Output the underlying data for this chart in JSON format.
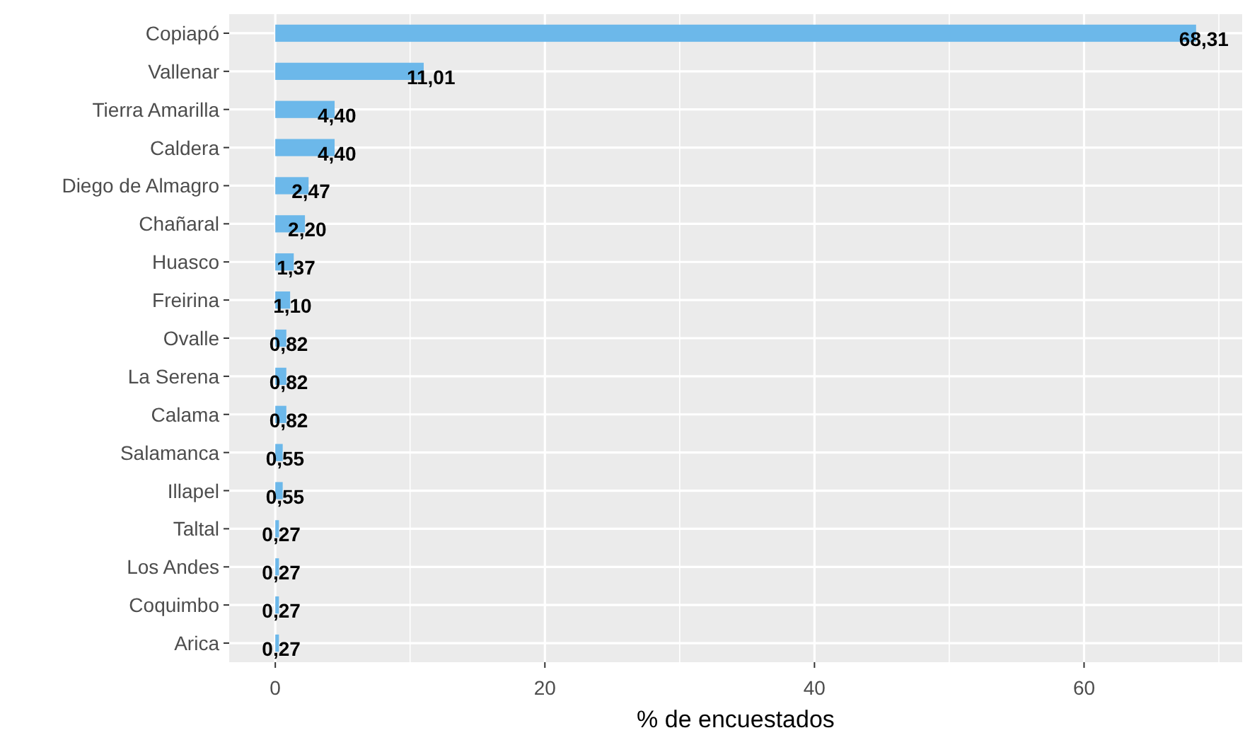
{
  "chart_data": {
    "type": "bar",
    "orientation": "horizontal",
    "xlabel": "% de encuestados",
    "categories": [
      "Copiapó",
      "Vallenar",
      "Tierra Amarilla",
      "Caldera",
      "Diego de Almagro",
      "Chañaral",
      "Huasco",
      "Freirina",
      "Ovalle",
      "La Serena",
      "Calama",
      "Salamanca",
      "Illapel",
      "Taltal",
      "Los Andes",
      "Coquimbo",
      "Arica"
    ],
    "values": [
      68.31,
      11.01,
      4.4,
      4.4,
      2.47,
      2.2,
      1.37,
      1.1,
      0.82,
      0.82,
      0.82,
      0.55,
      0.55,
      0.27,
      0.27,
      0.27,
      0.27
    ],
    "value_labels": [
      "68,31",
      "11,01",
      "4,40",
      "4,40",
      "2,47",
      "2,20",
      "1,37",
      "1,10",
      "0,82",
      "0,82",
      "0,82",
      "0,55",
      "0,55",
      "0,27",
      "0,27",
      "0,27",
      "0,27"
    ],
    "color": "#6cb8ea",
    "xlim": [
      -3.42,
      71.73
    ],
    "xticks": [
      0,
      {
        "value": 10,
        "label": null
      },
      20,
      {
        "value": 30,
        "label": null
      },
      40,
      {
        "value": 50,
        "label": null
      },
      60,
      {
        "value": 70,
        "label": null
      }
    ],
    "grid": true
  }
}
